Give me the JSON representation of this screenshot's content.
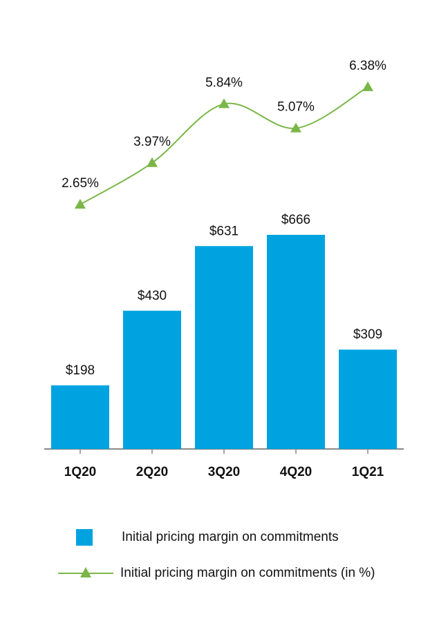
{
  "colors": {
    "bar": "#00a3e0",
    "line": "#7ab648",
    "axis": "#888888",
    "text": "#111111"
  },
  "chart_data": {
    "type": "bar",
    "categories": [
      "1Q20",
      "2Q20",
      "3Q20",
      "4Q20",
      "1Q21"
    ],
    "series": [
      {
        "name": "Initial pricing margin on commitments",
        "type": "bar",
        "values": [
          198,
          430,
          631,
          666,
          309
        ],
        "labels": [
          "$198",
          "$430",
          "$631",
          "$666",
          "$309"
        ]
      },
      {
        "name": "Initial pricing margin on commitments (in %)",
        "type": "line",
        "marker": "triangle",
        "values": [
          2.65,
          3.97,
          5.84,
          5.07,
          6.38
        ],
        "labels": [
          "2.65%",
          "3.97%",
          "5.84%",
          "5.07%",
          "6.38%"
        ]
      }
    ],
    "title": "",
    "xlabel": "",
    "ylabel": "",
    "legend": "bottom",
    "grid": false
  }
}
